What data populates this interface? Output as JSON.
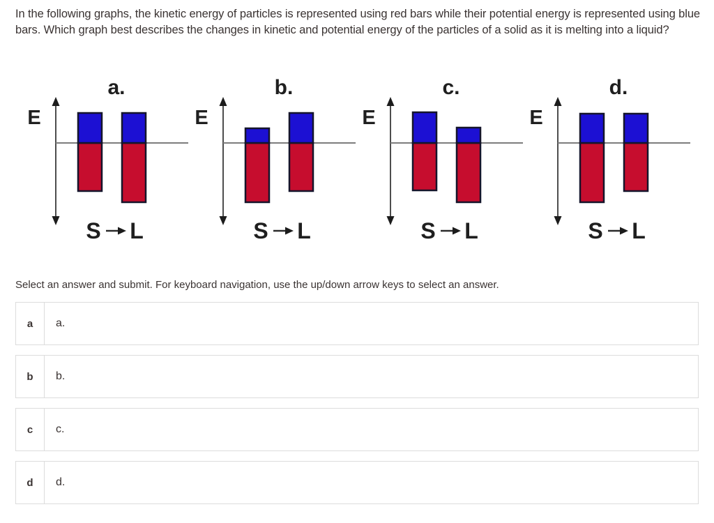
{
  "question": {
    "text": "In the following graphs, the kinetic energy of particles is represented using red bars while their potential energy is represented using blue bars. Which graph best describes the changes in kinetic and potential energy of the particles of a solid as it is melting into a liquid?"
  },
  "figure": {
    "energy_axis_label": "E",
    "solid_label": "S",
    "liquid_label": "L"
  },
  "colors": {
    "kinetic_red": "#c60d2e",
    "potential_blue": "#1c10d3",
    "bar_outline": "#15152b",
    "axis_gray": "#7d7d7d",
    "arrow_dark": "#1c1c1c"
  },
  "chart_data": [
    {
      "type": "bar",
      "title": "a.",
      "ylabel": "E",
      "categories": [
        "S",
        "L"
      ],
      "units": "bar length in px from the horizontal baseline",
      "series": [
        {
          "name": "potential energy (blue, above axis)",
          "color": "blue",
          "values": [
            43,
            43
          ]
        },
        {
          "name": "kinetic energy (red, below axis)",
          "color": "red",
          "values": [
            69,
            85
          ]
        }
      ],
      "trend": "potential constant, kinetic increases"
    },
    {
      "type": "bar",
      "title": "b.",
      "ylabel": "E",
      "categories": [
        "S",
        "L"
      ],
      "units": "bar length in px from the horizontal baseline",
      "series": [
        {
          "name": "potential energy (blue, above axis)",
          "color": "blue",
          "values": [
            21,
            43
          ]
        },
        {
          "name": "kinetic energy (red, below axis)",
          "color": "red",
          "values": [
            85,
            69
          ]
        }
      ],
      "trend": "potential increases, kinetic decreases"
    },
    {
      "type": "bar",
      "title": "c.",
      "ylabel": "E",
      "categories": [
        "S",
        "L"
      ],
      "units": "bar length in px from the horizontal baseline",
      "series": [
        {
          "name": "potential energy (blue, above axis)",
          "color": "blue",
          "values": [
            44,
            22
          ]
        },
        {
          "name": "kinetic energy (red, below axis)",
          "color": "red",
          "values": [
            68,
            85
          ]
        }
      ],
      "trend": "potential decreases, kinetic increases"
    },
    {
      "type": "bar",
      "title": "d.",
      "ylabel": "E",
      "categories": [
        "S",
        "L"
      ],
      "units": "bar length in px from the horizontal baseline",
      "series": [
        {
          "name": "potential energy (blue, above axis)",
          "color": "blue",
          "values": [
            42,
            42
          ]
        },
        {
          "name": "kinetic energy (red, below axis)",
          "color": "red",
          "values": [
            85,
            69
          ]
        }
      ],
      "trend": "potential constant, kinetic decreases"
    }
  ],
  "answer_section": {
    "prompt": "Select an answer and submit. For keyboard navigation, use the up/down arrow keys to select an answer.",
    "options": [
      {
        "key": "a",
        "label": "a."
      },
      {
        "key": "b",
        "label": "b."
      },
      {
        "key": "c",
        "label": "c."
      },
      {
        "key": "d",
        "label": "d."
      }
    ]
  }
}
